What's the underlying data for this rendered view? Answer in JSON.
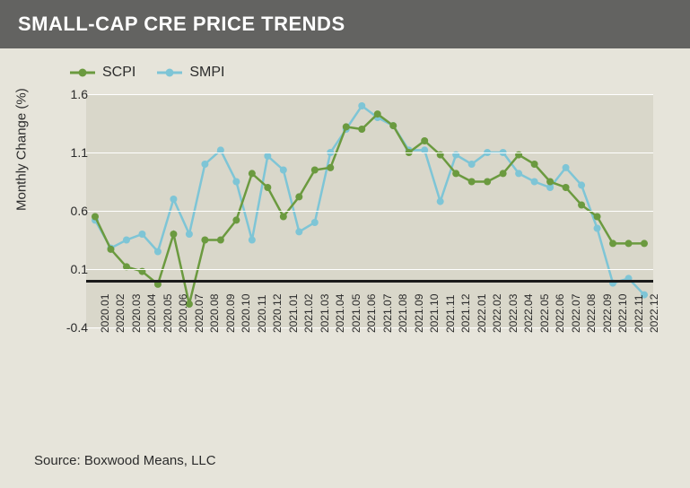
{
  "title": "SMALL-CAP CRE PRICE TRENDS",
  "title_fontsize": 22,
  "source": "Source: Boxwood Means, LLC",
  "colors": {
    "page_bg": "#e6e4da",
    "titlebar_bg": "#636361",
    "titlebar_text": "#ffffff",
    "plot_bg": "#d9d7ca",
    "grid": "#ffffff",
    "zero_line": "#1a1a1a",
    "text": "#2b2b2b"
  },
  "chart": {
    "type": "line",
    "ylabel": "Monthly Change (%)",
    "ylim": [
      -0.4,
      1.6
    ],
    "ytick_step": 0.5,
    "yticks": [
      -0.4,
      0.1,
      0.6,
      1.1,
      1.6
    ],
    "zero_at": 0.0,
    "line_width": 2.5,
    "marker_size": 8,
    "marker_shape": "circle",
    "label_fontsize": 15,
    "xtick_fontsize": 12,
    "categories": [
      "2020.01",
      "2020.02",
      "2020.03",
      "2020.04",
      "2020.05",
      "2020.06",
      "2020.07",
      "2020.08",
      "2020.09",
      "2020.10",
      "2020.11",
      "2020.12",
      "2021.01",
      "2021.02",
      "2021.03",
      "2021.04",
      "2021.05",
      "2021.06",
      "2021.07",
      "2021.08",
      "2021.09",
      "2021.10",
      "2021.11",
      "2021.12",
      "2022.01",
      "2022.02",
      "2022.03",
      "2022.04",
      "2022.05",
      "2022.06",
      "2022.07",
      "2022.08",
      "2022.09",
      "2022.10",
      "2022.11",
      "2022.12"
    ],
    "series": [
      {
        "name": "SCPI",
        "color": "#6b9a3f",
        "values": [
          0.55,
          0.27,
          0.12,
          0.08,
          -0.03,
          0.4,
          -0.2,
          0.35,
          0.35,
          0.52,
          0.92,
          0.8,
          0.55,
          0.72,
          0.95,
          0.97,
          1.32,
          1.3,
          1.43,
          1.33,
          1.1,
          1.2,
          1.08,
          0.92,
          0.85,
          0.85,
          0.92,
          1.08,
          1.0,
          0.85,
          0.8,
          0.65,
          0.55,
          0.32,
          0.32,
          0.32
        ]
      },
      {
        "name": "SMPI",
        "color": "#7ec5d6",
        "values": [
          0.52,
          0.28,
          0.35,
          0.4,
          0.25,
          0.7,
          0.4,
          1.0,
          1.12,
          0.85,
          0.35,
          1.07,
          0.95,
          0.42,
          0.5,
          1.1,
          1.3,
          1.5,
          1.4,
          1.33,
          1.12,
          1.12,
          0.68,
          1.08,
          1.0,
          1.1,
          1.1,
          0.92,
          0.85,
          0.8,
          0.97,
          0.82,
          0.45,
          -0.02,
          0.02,
          -0.12
        ]
      }
    ]
  }
}
